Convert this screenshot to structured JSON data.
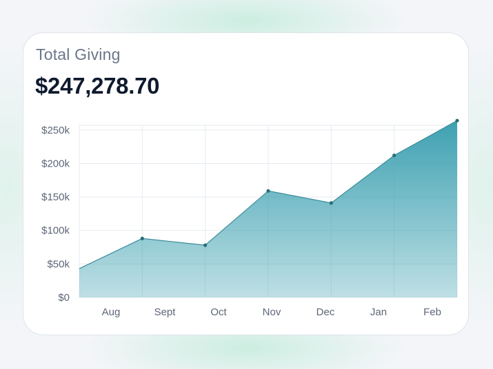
{
  "card": {
    "title": "Total Giving",
    "amount": "$247,278.70"
  },
  "colors": {
    "accent": "#3aa0b0",
    "line": "#3a8c99",
    "point": "#2a6d78",
    "grid": "#e6ebf0",
    "text": "#5d6677"
  },
  "chart_data": {
    "type": "area",
    "x_tick_labels": [
      "Aug",
      "Sept",
      "Oct",
      "Nov",
      "Dec",
      "Jan",
      "Feb"
    ],
    "y_tick_labels": [
      "$0",
      "$50k",
      "$100k",
      "$150k",
      "$200k",
      "$250k"
    ],
    "y_ticks": [
      0,
      50000,
      100000,
      150000,
      200000,
      250000
    ],
    "ylim": [
      0,
      257000
    ],
    "series": [
      {
        "values": [
          43000,
          88000,
          78000,
          159000,
          141000,
          212000,
          264000
        ]
      }
    ],
    "grid": true,
    "legend": "none"
  }
}
